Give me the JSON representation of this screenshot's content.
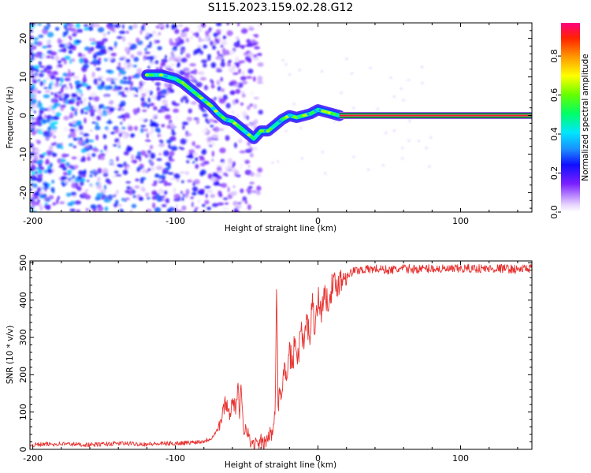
{
  "figure": {
    "title": "S115.2023.159.02.28.G12"
  },
  "chart_data": [
    {
      "type": "heatmap",
      "title": "",
      "xlabel": "Height of straight line (km)",
      "ylabel": "Frequency (Hz)",
      "xlim": [
        -202,
        150
      ],
      "ylim": [
        -25,
        24
      ],
      "xticks": [
        -200,
        -100,
        0,
        100
      ],
      "yticks": [
        -20,
        -10,
        0,
        10,
        20
      ],
      "grid": false,
      "ridge": {
        "name": "dominant spectral line",
        "x": [
          -120,
          -110,
          -100,
          -95,
          -90,
          -85,
          -80,
          -75,
          -70,
          -65,
          -60,
          -55,
          -50,
          -45,
          -40,
          -35,
          -30,
          -25,
          -20,
          -15,
          -10,
          -5,
          0,
          5,
          10,
          15
        ],
        "y": [
          10.5,
          10.5,
          9.5,
          8.5,
          7,
          5.5,
          4,
          2.5,
          0.5,
          -1,
          -1.5,
          -3,
          -4.5,
          -6,
          -4,
          -4,
          -2.5,
          -1,
          0,
          -0.5,
          0,
          0.5,
          1.5,
          1,
          0.5,
          0
        ]
      },
      "line_segment": {
        "x": [
          15,
          150
        ],
        "y": 0,
        "amplitude": 0.95
      },
      "noise_region": {
        "x": [
          -202,
          -40
        ],
        "amplitude_range": [
          0.0,
          0.45
        ]
      },
      "colorbar": {
        "label": "Normalized spectral amplitude",
        "ticks": [
          0.0,
          0.2,
          0.4,
          0.6,
          0.8
        ],
        "range": [
          0.0,
          0.97
        ]
      }
    },
    {
      "type": "line",
      "title": "",
      "xlabel": "Height of straight line (km)",
      "ylabel": "SNR (10 * v/v)",
      "xlim": [
        -202,
        150
      ],
      "ylim": [
        0,
        505
      ],
      "xticks": [
        -200,
        -100,
        0,
        100
      ],
      "yticks": [
        0,
        100,
        200,
        300,
        400,
        500
      ],
      "grid": false,
      "series": [
        {
          "name": "",
          "color": "#e8312f",
          "x": [
            -202,
            -180,
            -160,
            -140,
            -120,
            -100,
            -90,
            -80,
            -75,
            -70,
            -67,
            -65,
            -62,
            -60,
            -58,
            -56,
            -55,
            -54,
            -52,
            -50,
            -48,
            -45,
            -42,
            -40,
            -38,
            -36,
            -34,
            -32,
            -30,
            -29,
            -28,
            -27,
            -26,
            -25,
            -24,
            -22,
            -20,
            -18,
            -16,
            -14,
            -12,
            -10,
            -8,
            -6,
            -4,
            -2,
            0,
            2,
            4,
            6,
            8,
            10,
            12,
            15,
            18,
            20,
            22,
            25,
            28,
            30,
            35,
            40,
            50,
            60,
            70,
            80,
            90,
            100,
            110,
            120,
            130,
            140,
            150
          ],
          "y": [
            12,
            15,
            12,
            16,
            14,
            16,
            18,
            22,
            30,
            55,
            90,
            130,
            95,
            130,
            110,
            160,
            80,
            170,
            50,
            65,
            20,
            15,
            10,
            20,
            10,
            25,
            40,
            35,
            120,
            480,
            100,
            170,
            140,
            160,
            220,
            190,
            270,
            220,
            300,
            240,
            330,
            270,
            350,
            300,
            390,
            330,
            410,
            360,
            420,
            390,
            420,
            435,
            440,
            450,
            462,
            470,
            470,
            478,
            480,
            482,
            482,
            484,
            480,
            484,
            483,
            485,
            482,
            484,
            485,
            484,
            485,
            482,
            486
          ]
        }
      ]
    }
  ]
}
